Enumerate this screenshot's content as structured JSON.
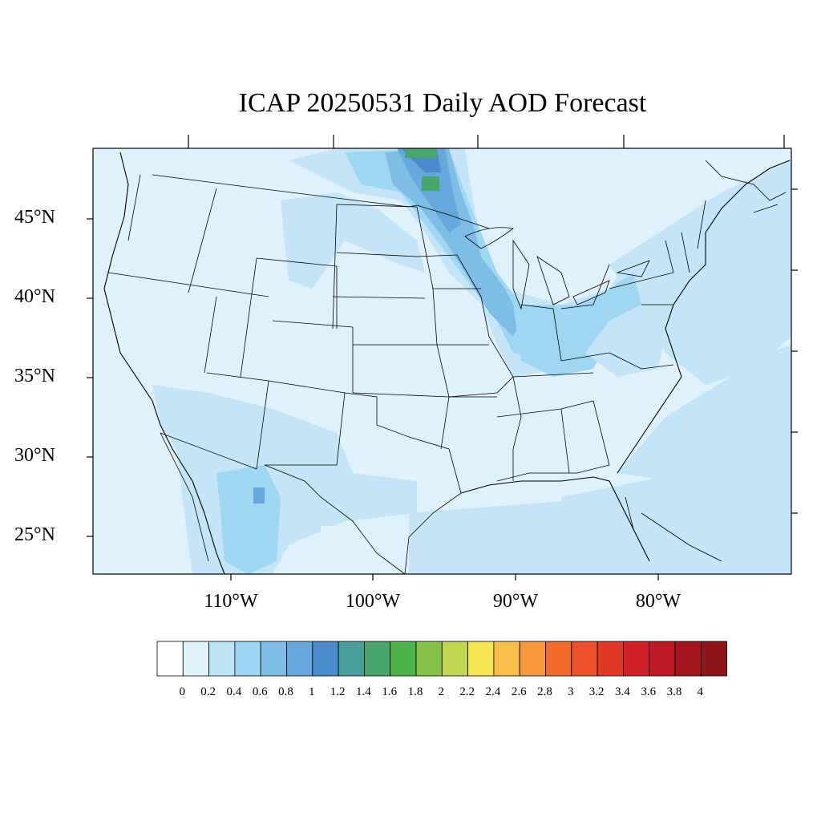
{
  "title": "ICAP 20250531 Daily AOD Forecast",
  "map": {
    "lat_labels": [
      "45°N",
      "40°N",
      "35°N",
      "30°N",
      "25°N"
    ],
    "lon_labels": [
      "110°W",
      "100°W",
      "90°W",
      "80°W"
    ]
  },
  "colorbar": {
    "labels": [
      "0",
      "0.2",
      "0.4",
      "0.6",
      "0.8",
      "1",
      "1.2",
      "1.4",
      "1.6",
      "1.8",
      "2",
      "2.2",
      "2.4",
      "2.6",
      "2.8",
      "3",
      "3.2",
      "3.4",
      "3.6",
      "3.8",
      "4"
    ],
    "colors": [
      "#ffffff",
      "#e0f2fb",
      "#bde3f7",
      "#9dd6f2",
      "#7fbde6",
      "#66a8dc",
      "#4a8cc9",
      "#4a9e9a",
      "#47a66d",
      "#4cb34a",
      "#86c24a",
      "#c3d654",
      "#f7e556",
      "#f7bf49",
      "#f7983d",
      "#f26c2d",
      "#e9522a",
      "#e03a27",
      "#d12128",
      "#bd1a24",
      "#a5171e",
      "#8e1519"
    ]
  }
}
